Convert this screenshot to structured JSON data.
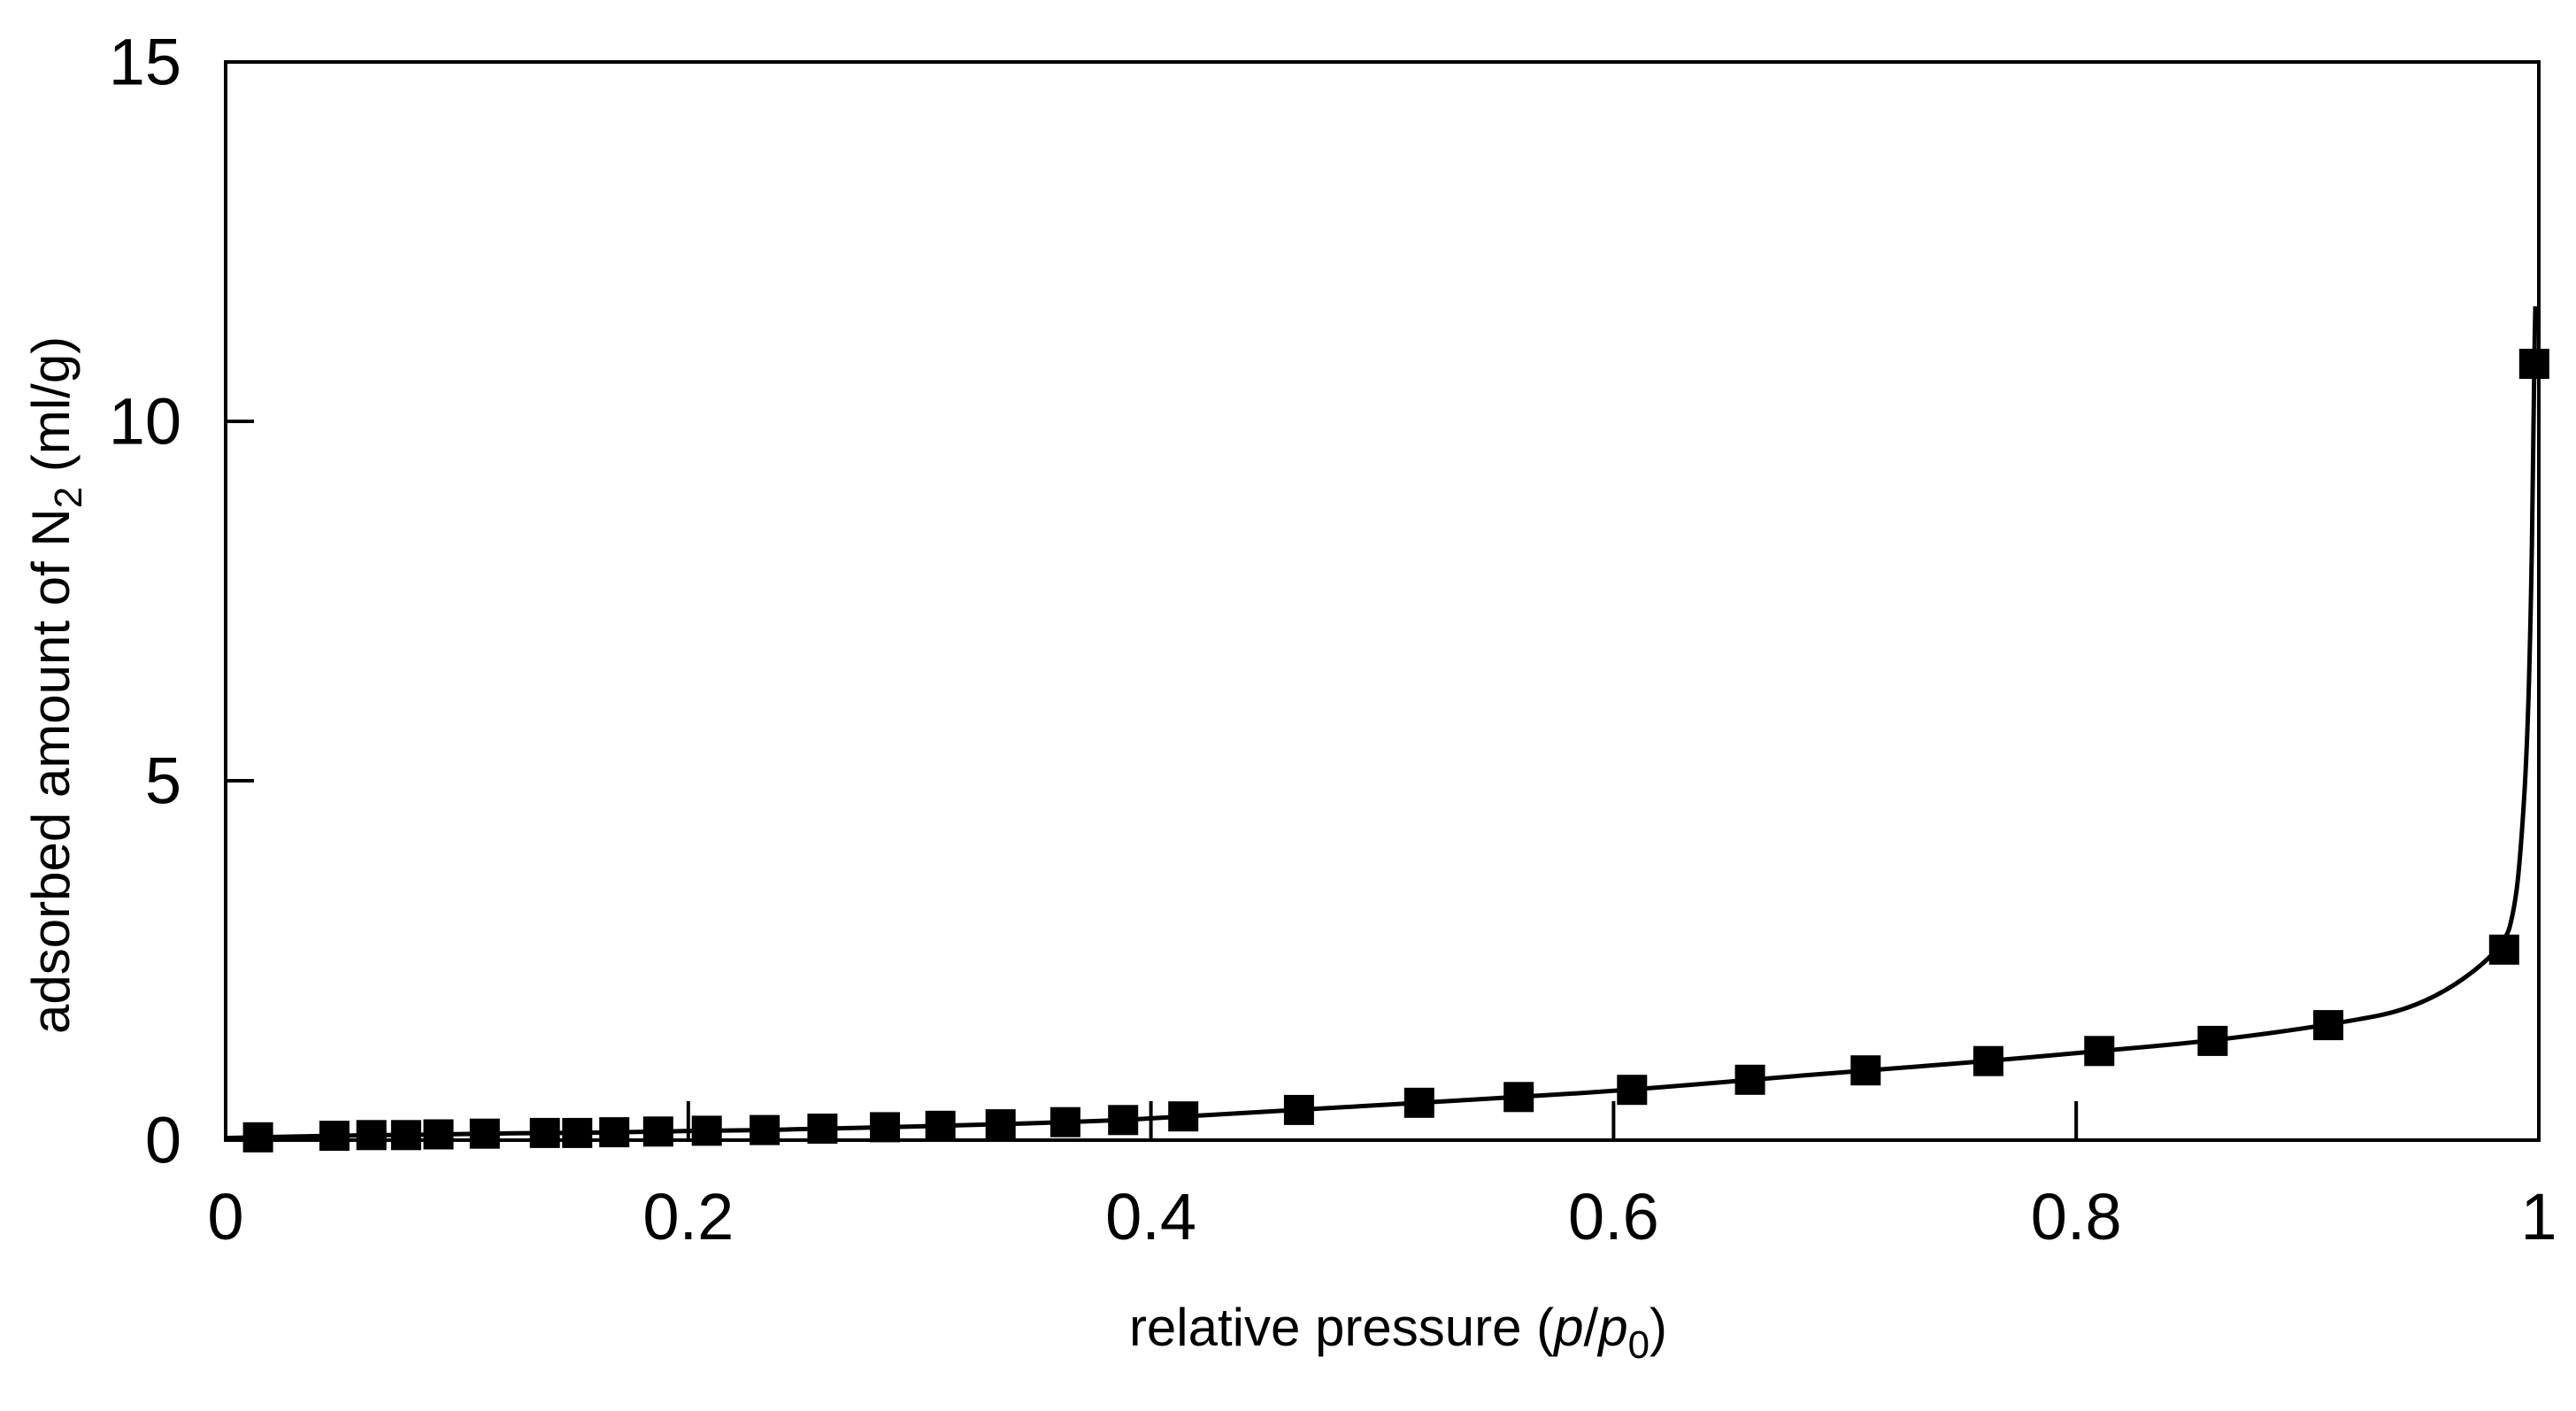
{
  "chart_data": {
    "type": "scatter",
    "subtype": "line+scatter",
    "title": "",
    "xlabel": "relative pressure (p/p0)",
    "ylabel": "adsorbed amount of N2 (ml/g)",
    "xlabel_parts": {
      "prefix": "relative pressure (",
      "p1": "p",
      "slash": "/",
      "p2": "p",
      "sub0": "0",
      "close": ")"
    },
    "ylabel_parts": {
      "prefix": "adsorbed amount of N",
      "sub2": "2",
      "suffix": " (ml/g)"
    },
    "xlim": [
      0,
      1
    ],
    "ylim": [
      0,
      15
    ],
    "grid": false,
    "legend": "none",
    "frame": true,
    "marker": "filled-square",
    "marker_color": "#000000",
    "line_color": "#000000",
    "background_color": "#ffffff",
    "xticks": [
      {
        "value": 0,
        "label": "0"
      },
      {
        "value": 0.2,
        "label": "0.2"
      },
      {
        "value": 0.4,
        "label": "0.4"
      },
      {
        "value": 0.6,
        "label": "0.6"
      },
      {
        "value": 0.8,
        "label": "0.8"
      },
      {
        "value": 1,
        "label": "1"
      }
    ],
    "yticks": [
      {
        "value": 0,
        "label": "0"
      },
      {
        "value": 5,
        "label": "5"
      },
      {
        "value": 10,
        "label": "10"
      },
      {
        "value": 15,
        "label": "15"
      }
    ],
    "points": [
      [
        0.014,
        0.04
      ],
      [
        0.047,
        0.06
      ],
      [
        0.063,
        0.07
      ],
      [
        0.078,
        0.07
      ],
      [
        0.092,
        0.08
      ],
      [
        0.112,
        0.09
      ],
      [
        0.138,
        0.1
      ],
      [
        0.152,
        0.1
      ],
      [
        0.168,
        0.11
      ],
      [
        0.187,
        0.12
      ],
      [
        0.208,
        0.13
      ],
      [
        0.233,
        0.14
      ],
      [
        0.258,
        0.16
      ],
      [
        0.285,
        0.18
      ],
      [
        0.309,
        0.2
      ],
      [
        0.335,
        0.22
      ],
      [
        0.363,
        0.25
      ],
      [
        0.388,
        0.28
      ],
      [
        0.414,
        0.33
      ],
      [
        0.464,
        0.42
      ],
      [
        0.516,
        0.52
      ],
      [
        0.559,
        0.6
      ],
      [
        0.608,
        0.7
      ],
      [
        0.659,
        0.84
      ],
      [
        0.709,
        0.97
      ],
      [
        0.762,
        1.1
      ],
      [
        0.81,
        1.24
      ],
      [
        0.859,
        1.38
      ],
      [
        0.909,
        1.6
      ],
      [
        0.985,
        2.65
      ],
      [
        0.998,
        10.8
      ]
    ],
    "curve": [
      [
        0.0,
        0.03
      ],
      [
        0.014,
        0.04
      ],
      [
        0.047,
        0.06
      ],
      [
        0.063,
        0.07
      ],
      [
        0.078,
        0.07
      ],
      [
        0.092,
        0.08
      ],
      [
        0.112,
        0.09
      ],
      [
        0.138,
        0.1
      ],
      [
        0.152,
        0.1
      ],
      [
        0.168,
        0.11
      ],
      [
        0.187,
        0.12
      ],
      [
        0.208,
        0.13
      ],
      [
        0.233,
        0.14
      ],
      [
        0.258,
        0.16
      ],
      [
        0.285,
        0.18
      ],
      [
        0.309,
        0.2
      ],
      [
        0.335,
        0.22
      ],
      [
        0.363,
        0.25
      ],
      [
        0.388,
        0.28
      ],
      [
        0.414,
        0.33
      ],
      [
        0.464,
        0.42
      ],
      [
        0.516,
        0.52
      ],
      [
        0.559,
        0.6
      ],
      [
        0.608,
        0.7
      ],
      [
        0.659,
        0.84
      ],
      [
        0.709,
        0.97
      ],
      [
        0.762,
        1.1
      ],
      [
        0.81,
        1.24
      ],
      [
        0.859,
        1.38
      ],
      [
        0.909,
        1.6
      ],
      [
        0.95,
        1.85
      ],
      [
        0.985,
        2.65
      ],
      [
        0.99,
        3.3
      ],
      [
        0.9925,
        4.15
      ],
      [
        0.995,
        5.5
      ],
      [
        0.9965,
        7.3
      ],
      [
        0.9975,
        9.3
      ],
      [
        0.998,
        10.8
      ],
      [
        0.9985,
        11.6
      ]
    ]
  }
}
